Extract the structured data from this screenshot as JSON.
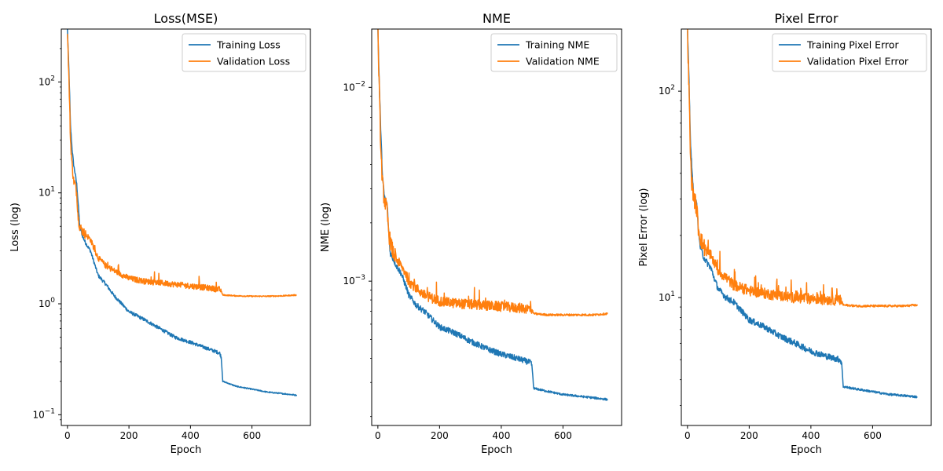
{
  "chart_data": [
    {
      "type": "line",
      "title": "Loss(MSE)",
      "xlabel": "Epoch",
      "ylabel": "Loss (log)",
      "yscale": "log",
      "xlim": [
        -20,
        790
      ],
      "ylim": [
        0.08,
        300
      ],
      "xticks": [
        "0",
        "200",
        "400",
        "600"
      ],
      "yticks": [
        {
          "value": 0.1,
          "base": "10",
          "exp": "−1"
        },
        {
          "value": 1,
          "base": "10",
          "exp": "0"
        },
        {
          "value": 10,
          "base": "10",
          "exp": "1"
        },
        {
          "value": 100,
          "base": "10",
          "exp": "2"
        }
      ],
      "legend_position": "top-right",
      "series": [
        {
          "name": "Training Loss",
          "color": "#1f77b4",
          "x": [
            0,
            5,
            10,
            15,
            20,
            25,
            30,
            35,
            40,
            50,
            60,
            75,
            90,
            100,
            125,
            150,
            200,
            250,
            300,
            350,
            400,
            450,
            495,
            500,
            505,
            550,
            600,
            650,
            700,
            745
          ],
          "y": [
            300,
            120,
            40,
            25,
            18,
            15,
            12,
            8,
            5,
            4,
            3.5,
            3,
            2.2,
            1.8,
            1.5,
            1.2,
            0.85,
            0.72,
            0.6,
            0.5,
            0.45,
            0.4,
            0.36,
            0.33,
            0.2,
            0.18,
            0.17,
            0.16,
            0.155,
            0.15
          ]
        },
        {
          "name": "Validation Loss",
          "color": "#ff7f0e",
          "x": [
            0,
            5,
            10,
            15,
            20,
            25,
            30,
            35,
            40,
            50,
            60,
            75,
            90,
            100,
            125,
            150,
            200,
            250,
            300,
            350,
            400,
            450,
            495,
            500,
            505,
            550,
            600,
            650,
            700,
            745
          ],
          "y": [
            300,
            100,
            30,
            18,
            13,
            12,
            10,
            6,
            5,
            4.5,
            4.2,
            3.8,
            3,
            2.6,
            2.2,
            2,
            1.7,
            1.6,
            1.55,
            1.5,
            1.45,
            1.4,
            1.35,
            1.3,
            1.2,
            1.18,
            1.17,
            1.17,
            1.18,
            1.2
          ]
        }
      ]
    },
    {
      "type": "line",
      "title": "NME",
      "xlabel": "Epoch",
      "ylabel": "NME (log)",
      "yscale": "log",
      "xlim": [
        -20,
        790
      ],
      "ylim": [
        0.00018,
        0.02
      ],
      "xticks": [
        "0",
        "200",
        "400",
        "600"
      ],
      "yticks": [
        {
          "value": 0.001,
          "base": "10",
          "exp": "−3"
        },
        {
          "value": 0.01,
          "base": "10",
          "exp": "−2"
        }
      ],
      "legend_position": "top-right",
      "series": [
        {
          "name": "Training NME",
          "color": "#1f77b4",
          "x": [
            0,
            5,
            10,
            15,
            20,
            25,
            30,
            35,
            40,
            50,
            60,
            75,
            90,
            100,
            125,
            150,
            200,
            250,
            300,
            350,
            400,
            450,
            495,
            500,
            505,
            550,
            600,
            650,
            700,
            745
          ],
          "y": [
            0.02,
            0.01,
            0.0055,
            0.0035,
            0.0028,
            0.0026,
            0.0025,
            0.0018,
            0.0014,
            0.0013,
            0.0012,
            0.0011,
            0.00095,
            0.00085,
            0.00075,
            0.0007,
            0.00058,
            0.00054,
            0.00049,
            0.00045,
            0.00042,
            0.0004,
            0.00038,
            0.00036,
            0.00028,
            0.00027,
            0.00026,
            0.000255,
            0.00025,
            0.000245
          ]
        },
        {
          "name": "Validation NME",
          "color": "#ff7f0e",
          "x": [
            0,
            5,
            10,
            15,
            20,
            25,
            30,
            35,
            40,
            50,
            60,
            75,
            90,
            100,
            125,
            150,
            200,
            250,
            300,
            350,
            400,
            450,
            495,
            500,
            505,
            550,
            600,
            650,
            700,
            745
          ],
          "y": [
            0.02,
            0.009,
            0.0045,
            0.0032,
            0.0027,
            0.0025,
            0.0023,
            0.0018,
            0.0016,
            0.0014,
            0.0013,
            0.0012,
            0.0011,
            0.001,
            0.00092,
            0.00085,
            0.00079,
            0.00077,
            0.00076,
            0.00075,
            0.00074,
            0.00073,
            0.00072,
            0.00071,
            0.00068,
            0.00067,
            0.00067,
            0.00067,
            0.00067,
            0.00068
          ]
        }
      ]
    },
    {
      "type": "line",
      "title": "Pixel Error",
      "xlabel": "Epoch",
      "ylabel": "Pixel Error (log)",
      "yscale": "log",
      "xlim": [
        -20,
        790
      ],
      "ylim": [
        2.4,
        200
      ],
      "xticks": [
        "0",
        "200",
        "400",
        "600"
      ],
      "yticks": [
        {
          "value": 10,
          "base": "10",
          "exp": "1"
        },
        {
          "value": 100,
          "base": "10",
          "exp": "2"
        }
      ],
      "legend_position": "top-right",
      "series": [
        {
          "name": "Training Pixel Error",
          "color": "#1f77b4",
          "x": [
            0,
            5,
            10,
            15,
            20,
            25,
            30,
            35,
            40,
            50,
            60,
            75,
            90,
            100,
            125,
            150,
            200,
            250,
            300,
            350,
            400,
            450,
            495,
            500,
            505,
            550,
            600,
            650,
            700,
            745
          ],
          "y": [
            200,
            110,
            55,
            40,
            32,
            30,
            28,
            22,
            18,
            16,
            15,
            14,
            12,
            11,
            10,
            9.5,
            7.8,
            7.2,
            6.5,
            6,
            5.5,
            5.2,
            5,
            4.8,
            3.7,
            3.6,
            3.5,
            3.4,
            3.35,
            3.3
          ]
        },
        {
          "name": "Validation Pixel Error",
          "color": "#ff7f0e",
          "x": [
            0,
            5,
            10,
            15,
            20,
            25,
            30,
            35,
            40,
            50,
            60,
            75,
            90,
            100,
            125,
            150,
            200,
            250,
            300,
            350,
            400,
            450,
            495,
            500,
            505,
            550,
            600,
            650,
            700,
            745
          ],
          "y": [
            200,
            100,
            45,
            35,
            31,
            29,
            27,
            22,
            20,
            18,
            17,
            16,
            14.5,
            13.5,
            12.5,
            11.5,
            10.8,
            10.5,
            10.2,
            10,
            9.9,
            9.8,
            9.7,
            9.6,
            9.2,
            9.1,
            9.1,
            9.1,
            9.1,
            9.2
          ]
        }
      ]
    }
  ]
}
